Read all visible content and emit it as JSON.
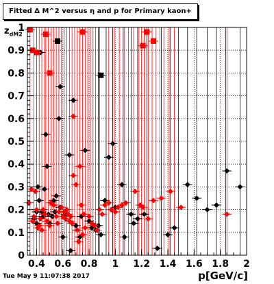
{
  "chart_data": {
    "type": "scatter",
    "title": "Fitted Δ M^2 versus η and p for Primary kaon+",
    "ylabel_main": "z",
    "ylabel_sub": "dM2",
    "xlabel": "p[GeV/c]",
    "xlim": [
      0.33,
      2.0
    ],
    "ylim": [
      0,
      1.0
    ],
    "xticks": [
      0.4,
      0.6,
      0.8,
      1,
      1.2,
      1.4,
      1.6,
      1.8,
      2
    ],
    "yticks": [
      0,
      0.1,
      0.2,
      0.3,
      0.4,
      0.5,
      0.6,
      0.7,
      0.8,
      0.9,
      1
    ],
    "grid": "dotted",
    "timestamp": "Tue May  9 11:07:38 2017",
    "colors": {
      "black_series": "#000000",
      "red_series": "#ff0000"
    },
    "black_vlines": [
      0.87,
      0.93,
      0.98,
      1.06,
      1.12,
      1.17,
      1.24,
      1.35,
      1.42,
      1.48,
      1.55,
      1.62,
      1.7,
      1.77,
      1.84,
      1.95
    ],
    "red_vlines": [
      0.35,
      0.38,
      0.4,
      0.42,
      0.44,
      0.46,
      0.47,
      0.49,
      0.51,
      0.53,
      0.55,
      0.57,
      0.59,
      0.61,
      0.63,
      0.65,
      0.67,
      0.69,
      0.71,
      0.73,
      0.75,
      0.77,
      0.79,
      0.81,
      0.83,
      0.85,
      0.88,
      0.95,
      0.99,
      1.03,
      1.07,
      1.1,
      1.14,
      1.18,
      1.2,
      1.22,
      1.25,
      1.28,
      1.31,
      1.34,
      1.37,
      1.41,
      1.45,
      1.85
    ],
    "series": [
      {
        "color": "black",
        "diamonds": [
          [
            0.38,
            0.16
          ],
          [
            0.39,
            0.28
          ],
          [
            0.4,
            0.19
          ],
          [
            0.4,
            0.14
          ],
          [
            0.41,
            0.3
          ],
          [
            0.42,
            0.24
          ],
          [
            0.43,
            0.89
          ],
          [
            0.44,
            0.19
          ],
          [
            0.45,
            0.17
          ],
          [
            0.46,
            0.29
          ],
          [
            0.47,
            0.53
          ],
          [
            0.48,
            0.39
          ],
          [
            0.49,
            0.18
          ],
          [
            0.5,
            0.14
          ],
          [
            0.52,
            0.17
          ],
          [
            0.53,
            0.24
          ],
          [
            0.54,
            0.19
          ],
          [
            0.55,
            0.26
          ],
          [
            0.57,
            0.6
          ],
          [
            0.58,
            0.74
          ],
          [
            0.58,
            0.21
          ],
          [
            0.6,
            0.08
          ],
          [
            0.62,
            0.18
          ],
          [
            0.65,
            0.44
          ],
          [
            0.66,
            0.02
          ],
          [
            0.68,
            0.68
          ],
          [
            0.7,
            0.13
          ],
          [
            0.71,
            0.11
          ],
          [
            0.73,
            0.08
          ],
          [
            0.74,
            0.17
          ],
          [
            0.77,
            0.46
          ],
          [
            0.8,
            0.15
          ],
          [
            0.82,
            0.12
          ],
          [
            0.85,
            0.11
          ],
          [
            0.87,
            0.13
          ],
          [
            0.89,
            0.09
          ],
          [
            0.92,
            0.24
          ],
          [
            0.95,
            0.43
          ],
          [
            0.98,
            0.49
          ],
          [
            1.0,
            0.21
          ],
          [
            1.05,
            0.31
          ],
          [
            1.07,
            0.08
          ],
          [
            1.12,
            0.18
          ],
          [
            1.14,
            0.14
          ],
          [
            1.17,
            0.16
          ],
          [
            1.22,
            0.18
          ],
          [
            1.32,
            0.03
          ],
          [
            1.4,
            0.09
          ],
          [
            1.45,
            0.12
          ],
          [
            1.55,
            0.31
          ],
          [
            1.62,
            0.25
          ],
          [
            1.7,
            0.2
          ],
          [
            1.77,
            0.22
          ],
          [
            1.85,
            0.37
          ],
          [
            1.95,
            0.3
          ]
        ],
        "squares": [
          [
            0.56,
            0.94
          ],
          [
            0.89,
            0.79
          ]
        ]
      },
      {
        "color": "red",
        "diamonds": [
          [
            0.34,
            0.23
          ],
          [
            0.36,
            0.29
          ],
          [
            0.37,
            0.15
          ],
          [
            0.38,
            0.17
          ],
          [
            0.39,
            0.28
          ],
          [
            0.4,
            0.2
          ],
          [
            0.41,
            0.12
          ],
          [
            0.42,
            0.13
          ],
          [
            0.43,
            0.16
          ],
          [
            0.44,
            0.11
          ],
          [
            0.45,
            0.2
          ],
          [
            0.46,
            0.18
          ],
          [
            0.48,
            0.15
          ],
          [
            0.5,
            0.13
          ],
          [
            0.51,
            0.23
          ],
          [
            0.53,
            0.22
          ],
          [
            0.55,
            0.17
          ],
          [
            0.56,
            0.14
          ],
          [
            0.57,
            0.19
          ],
          [
            0.59,
            0.21
          ],
          [
            0.6,
            0.17
          ],
          [
            0.61,
            0.19
          ],
          [
            0.62,
            0.16
          ],
          [
            0.63,
            0.2
          ],
          [
            0.64,
            0.18
          ],
          [
            0.65,
            0.15
          ],
          [
            0.66,
            0.17
          ],
          [
            0.67,
            0.14
          ],
          [
            0.68,
            0.35
          ],
          [
            0.68,
            0.61
          ],
          [
            0.7,
            0.31
          ],
          [
            0.71,
            0.11
          ],
          [
            0.72,
            0.06
          ],
          [
            0.73,
            0.39
          ],
          [
            0.74,
            0.22
          ],
          [
            0.75,
            0.09
          ],
          [
            0.76,
            0.18
          ],
          [
            0.77,
            0.12
          ],
          [
            0.8,
            0.17
          ],
          [
            0.82,
            0.14
          ],
          [
            0.84,
            0.13
          ],
          [
            0.86,
            0.11
          ],
          [
            0.88,
            0.2
          ],
          [
            0.9,
            0.18
          ],
          [
            0.92,
            0.22
          ],
          [
            0.95,
            0.23
          ],
          [
            0.97,
            0.2
          ],
          [
            1.0,
            0.19
          ],
          [
            1.02,
            0.21
          ],
          [
            1.05,
            0.22
          ],
          [
            1.08,
            0.23
          ],
          [
            1.15,
            0.28
          ],
          [
            1.19,
            0.22
          ],
          [
            1.21,
            0.21
          ],
          [
            1.25,
            0.16
          ],
          [
            1.29,
            0.24
          ],
          [
            1.35,
            0.25
          ],
          [
            1.42,
            0.28
          ],
          [
            1.5,
            0.21
          ],
          [
            1.85,
            0.18
          ]
        ],
        "squares": [
          [
            0.35,
            0.99
          ],
          [
            0.37,
            0.9
          ],
          [
            0.4,
            0.89
          ],
          [
            0.47,
            0.97
          ],
          [
            0.5,
            0.8
          ],
          [
            0.75,
            0.98
          ],
          [
            1.21,
            0.92
          ],
          [
            1.24,
            0.98
          ],
          [
            1.29,
            0.94
          ]
        ]
      }
    ]
  }
}
